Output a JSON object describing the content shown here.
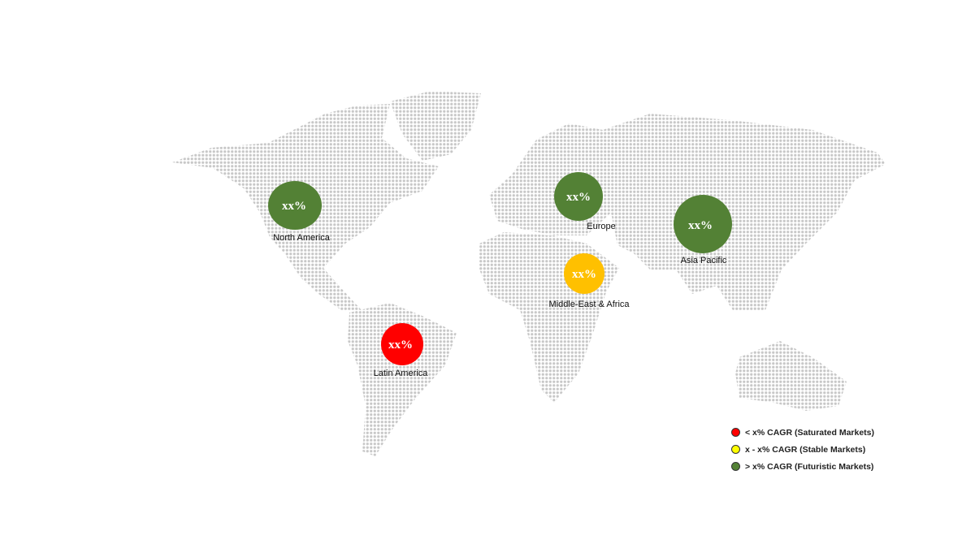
{
  "colors": {
    "land_dots": "#c8c8c8",
    "futuristic": "#538135",
    "stable_bubble": "#FFC000",
    "saturated": "#FF0000",
    "stable_legend": "#FFFF00"
  },
  "regions": [
    {
      "name": "North America",
      "value": "xx%",
      "category": "futuristic"
    },
    {
      "name": "Europe",
      "value": "xx%",
      "category": "futuristic"
    },
    {
      "name": "Asia Pacific",
      "value": "xx%",
      "category": "futuristic"
    },
    {
      "name": "Middle-East & Africa",
      "value": "xx%",
      "category": "stable"
    },
    {
      "name": "Latin America",
      "value": "xx%",
      "category": "saturated"
    }
  ],
  "legend": [
    {
      "label": "< x% CAGR (Saturated Markets)",
      "color": "#FF0000"
    },
    {
      "label": "x - x% CAGR (Stable Markets)",
      "color": "#FFFF00"
    },
    {
      "label": "> x% CAGR (Futuristic Markets)",
      "color": "#548235"
    }
  ]
}
